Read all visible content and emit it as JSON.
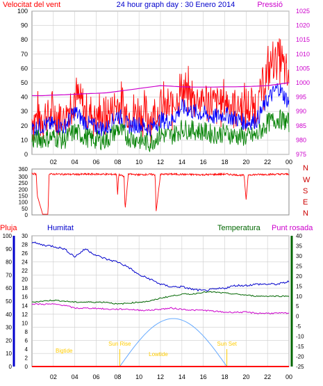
{
  "title": "24 hour graph day : 30 Enero 2014",
  "colors": {
    "wind_gust": "#ff0000",
    "wind_avg": "#0000ff",
    "wind_min": "#008000",
    "pressure": "#cc00cc",
    "rain": "#ff0000",
    "humidity": "#0000cc",
    "temperature": "#006600",
    "dewpoint": "#cc00cc",
    "sun": "#66aaff",
    "sun_labels": "#ffcc00",
    "grid": "#cccccc",
    "axis_text": "#000000"
  },
  "time_axis": {
    "range_hours": [
      0,
      24
    ],
    "tick_labels": [
      "02",
      "04",
      "06",
      "08",
      "10",
      "12",
      "14",
      "16",
      "18",
      "20",
      "22",
      "00"
    ],
    "tick_hours": [
      2,
      4,
      6,
      8,
      10,
      12,
      14,
      16,
      18,
      20,
      22,
      24
    ]
  },
  "chart_data": [
    {
      "type": "line",
      "panel": "wind-pressure",
      "title": "24 hour graph day : 30 Enero 2014",
      "left_axis_label": "Velocitat del vent",
      "right_axis_label": "Pressió",
      "left_ylim": [
        0,
        100
      ],
      "left_ticks": [
        0,
        10,
        20,
        30,
        40,
        50,
        60,
        70,
        80,
        90,
        100
      ],
      "right_ylim": [
        975,
        1025
      ],
      "right_ticks": [
        975,
        980,
        985,
        990,
        995,
        1000,
        1005,
        1010,
        1015,
        1020,
        1025
      ],
      "x": [
        0,
        1,
        2,
        3,
        4,
        5,
        6,
        7,
        8,
        9,
        10,
        11,
        12,
        13,
        14,
        15,
        16,
        17,
        18,
        19,
        20,
        21,
        22,
        23,
        24
      ],
      "series": [
        {
          "key": "gust",
          "axis": "left",
          "values": [
            25,
            27,
            28,
            26,
            42,
            30,
            27,
            26,
            36,
            28,
            30,
            26,
            33,
            32,
            45,
            40,
            38,
            35,
            37,
            35,
            32,
            34,
            58,
            70,
            50
          ]
        },
        {
          "key": "avg",
          "axis": "left",
          "values": [
            18,
            20,
            21,
            19,
            30,
            22,
            19,
            18,
            28,
            20,
            21,
            18,
            24,
            23,
            33,
            30,
            28,
            26,
            28,
            25,
            22,
            24,
            38,
            47,
            36
          ]
        },
        {
          "key": "min",
          "axis": "left",
          "values": [
            10,
            11,
            12,
            10,
            16,
            12,
            10,
            10,
            18,
            12,
            10,
            8,
            14,
            13,
            18,
            17,
            16,
            14,
            15,
            13,
            12,
            13,
            22,
            25,
            22
          ]
        },
        {
          "key": "pressure",
          "axis": "right",
          "values": [
            995.5,
            995.5,
            995.7,
            995.8,
            996.0,
            996.2,
            996.3,
            996.5,
            997.0,
            997.5,
            998.0,
            998.5,
            999.0,
            998.8,
            998.6,
            998.5,
            998.5,
            998.5,
            998.6,
            998.6,
            998.7,
            998.8,
            999.0,
            999.5,
            1000.0
          ]
        }
      ]
    },
    {
      "type": "line",
      "panel": "wind-direction",
      "ylim": [
        0,
        360
      ],
      "left_ticks": [
        0,
        50,
        100,
        150,
        200,
        250,
        300,
        360
      ],
      "right_labels": [
        "N",
        "W",
        "S",
        "E",
        "N"
      ],
      "x": [
        0,
        0.4,
        0.5,
        1,
        1.5,
        1.6,
        2,
        4,
        6,
        7.9,
        8,
        8.1,
        8.6,
        8.7,
        9,
        10,
        11,
        11.5,
        11.6,
        12,
        13,
        14,
        16,
        18,
        19.8,
        20,
        20.2,
        22,
        24
      ],
      "values": [
        325,
        320,
        150,
        5,
        5,
        320,
        320,
        318,
        320,
        318,
        160,
        318,
        300,
        40,
        320,
        315,
        318,
        315,
        30,
        318,
        320,
        318,
        315,
        320,
        310,
        120,
        315,
        318,
        320
      ]
    },
    {
      "type": "line",
      "panel": "rain-humidity-temperature",
      "left_label": "Pluja",
      "humidity_label": "Humitat",
      "temperature_label": "Temperatura",
      "dewpoint_label": "Punt rosada",
      "rain_ylim": [
        0,
        30
      ],
      "rain_ticks": [
        0,
        2,
        4,
        6,
        8,
        10,
        12,
        14,
        16,
        18,
        20,
        22,
        24,
        26,
        28,
        30
      ],
      "humidity_ylim": [
        0,
        100
      ],
      "humidity_ticks": [
        0,
        10,
        20,
        30,
        40,
        50,
        60,
        70,
        80,
        90,
        100
      ],
      "temp_ylim": [
        -25,
        40
      ],
      "temp_ticks": [
        -25,
        -20,
        -15,
        -10,
        -5,
        0,
        5,
        10,
        15,
        20,
        25,
        30,
        35,
        40
      ],
      "x": [
        0,
        1,
        2,
        3,
        4,
        5,
        6,
        7,
        8,
        9,
        10,
        11,
        12,
        13,
        14,
        15,
        16,
        17,
        18,
        19,
        20,
        21,
        22,
        23,
        24
      ],
      "series": [
        {
          "key": "humidity",
          "axis": "humidity",
          "values": [
            95,
            93,
            92,
            90,
            84,
            90,
            85,
            82,
            80,
            76,
            70,
            67,
            63,
            61,
            61,
            59,
            58,
            59,
            60,
            62,
            62,
            63,
            63,
            63,
            65
          ]
        },
        {
          "key": "temperature",
          "axis": "temp",
          "values": [
            7,
            7.5,
            8,
            7.5,
            7,
            7,
            7,
            7,
            6,
            6.5,
            7,
            7.5,
            9,
            10,
            11,
            11,
            12,
            12,
            11.5,
            11,
            10.5,
            10,
            10,
            10,
            10
          ]
        },
        {
          "key": "dewpoint",
          "axis": "temp",
          "values": [
            6,
            6,
            6,
            5.5,
            4,
            4,
            4,
            3.5,
            3.5,
            3.5,
            3,
            3,
            3.5,
            4,
            3.5,
            3,
            3,
            2.5,
            2,
            2,
            2,
            1.5,
            1.5,
            1.5,
            1.5
          ]
        },
        {
          "key": "rain",
          "axis": "rain",
          "values": [
            0,
            0,
            0,
            0,
            0,
            0,
            0,
            0,
            0,
            0,
            0,
            0,
            0,
            0,
            0,
            0,
            0,
            0,
            0,
            0,
            0,
            0,
            0,
            0,
            0
          ]
        }
      ],
      "sun": {
        "sunrise_hour": 8.2,
        "sunset_hour": 18.2,
        "peak_rain_scale": 11,
        "labels": {
          "sunrise": "Sun Rise",
          "sunset": "Sun Set",
          "lowtide": "Lowtide",
          "bigtide": "Bigtide"
        }
      }
    }
  ]
}
